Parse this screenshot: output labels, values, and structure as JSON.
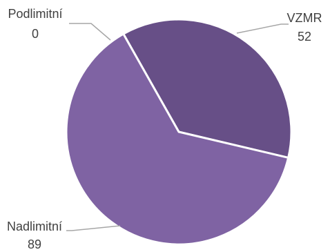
{
  "chart_data": {
    "type": "pie",
    "slices": [
      {
        "label": "VZMR",
        "value": 52,
        "value_text": "52",
        "color": "#674f87"
      },
      {
        "label": "Nadlimitní",
        "value": 89,
        "value_text": "89",
        "color": "#7f63a3"
      },
      {
        "label": "Podlimitní",
        "value": 0,
        "value_text": "0",
        "color": "#8b74ae"
      }
    ],
    "start_angle_deg": -29.5,
    "direction": "clockwise",
    "slice_separator_color": "#ffffff",
    "leader_line_color": "#a6a6a6",
    "data_labels": "outside with leader lines",
    "legend": "none"
  }
}
